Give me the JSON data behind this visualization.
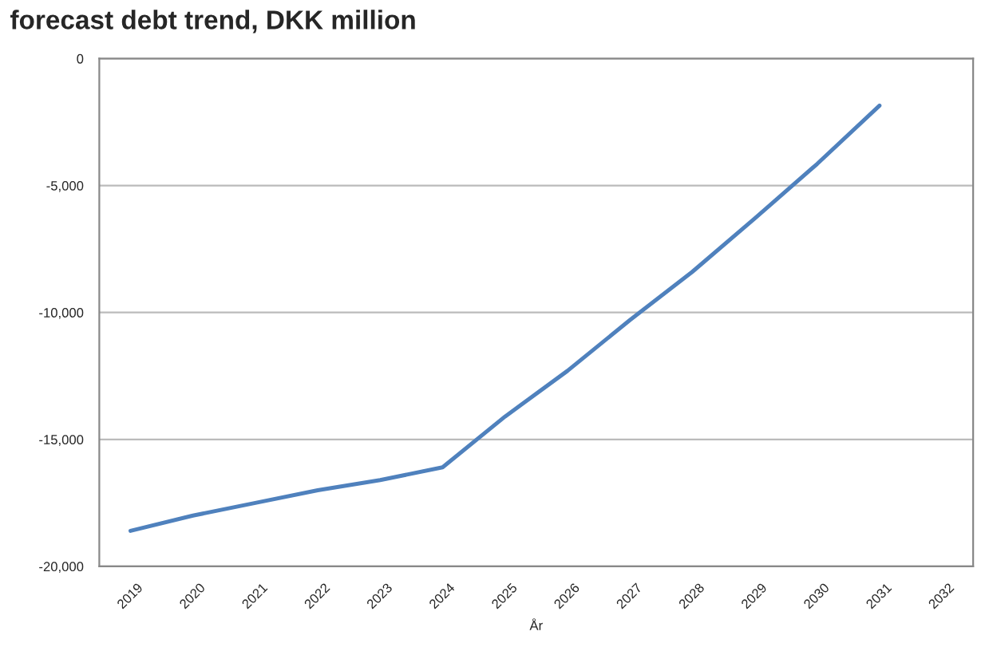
{
  "chart_data": {
    "type": "line",
    "title": "forecast debt trend, DKK million",
    "xlabel": "År",
    "categories": [
      "2019",
      "2020",
      "2021",
      "2022",
      "2023",
      "2024",
      "2025",
      "2026",
      "2027",
      "2028",
      "2029",
      "2030",
      "2031",
      "2032"
    ],
    "series": [
      {
        "color": "#4f81bd",
        "values": [
          -18600,
          -18000,
          -17500,
          -17000,
          -16600,
          -16100,
          -14100,
          -12300,
          -10300,
          -8400,
          -6300,
          -4150,
          -1850,
          null
        ]
      }
    ],
    "ylim": [
      -20000,
      0
    ],
    "yticks": [
      {
        "value": -20000,
        "label": "-20,000"
      },
      {
        "value": -15000,
        "label": "-15,000"
      },
      {
        "value": -10000,
        "label": "-10,000"
      },
      {
        "value": -5000,
        "label": "-5,000"
      },
      0
    ],
    "grid": "y",
    "marker": "none",
    "line_style": "solid"
  }
}
